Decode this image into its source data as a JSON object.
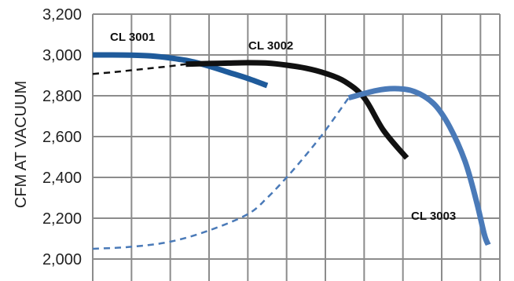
{
  "chart_data": {
    "type": "line",
    "title": "",
    "xlabel": "",
    "ylabel": "CFM AT VACUUM",
    "ylim": [
      2000,
      3200
    ],
    "yticks": [
      2000,
      2200,
      2400,
      2600,
      2800,
      3000,
      3200
    ],
    "ytick_labels": [
      "2,000",
      "2,200",
      "2,400",
      "2,600",
      "2,800",
      "3,000",
      "3,200"
    ],
    "xlim": [
      0,
      10.5
    ],
    "x_gridlines": 10,
    "grid": true,
    "legend": "none",
    "series": [
      {
        "name": "CL 3001",
        "color": "#1f5b9b",
        "style": "solid",
        "points": [
          [
            0,
            3000
          ],
          [
            0.5,
            3000
          ],
          [
            1,
            2999
          ],
          [
            1.5,
            2995
          ],
          [
            2,
            2985
          ],
          [
            2.5,
            2970
          ],
          [
            3,
            2945
          ],
          [
            3.5,
            2915
          ],
          [
            4,
            2885
          ],
          [
            4.5,
            2850
          ]
        ]
      },
      {
        "name": "CL 3002",
        "color": "#111111",
        "style": "solid",
        "points": [
          [
            2.4,
            2955
          ],
          [
            3,
            2958
          ],
          [
            3.5,
            2960
          ],
          [
            4,
            2962
          ],
          [
            4.5,
            2960
          ],
          [
            5,
            2950
          ],
          [
            5.5,
            2935
          ],
          [
            6,
            2910
          ],
          [
            6.5,
            2870
          ],
          [
            7,
            2790
          ],
          [
            7.5,
            2630
          ],
          [
            8.1,
            2495
          ]
        ]
      },
      {
        "name": "",
        "color": "#111111",
        "style": "dashed",
        "points": [
          [
            0,
            2907
          ],
          [
            0.5,
            2915
          ],
          [
            1,
            2925
          ],
          [
            1.5,
            2935
          ],
          [
            2,
            2945
          ],
          [
            2.4,
            2955
          ]
        ]
      },
      {
        "name": "CL 3003",
        "color": "#4a7ab8",
        "style": "solid",
        "points": [
          [
            6.6,
            2790
          ],
          [
            7.3,
            2825
          ],
          [
            7.8,
            2835
          ],
          [
            8.3,
            2820
          ],
          [
            8.8,
            2760
          ],
          [
            9.2,
            2650
          ],
          [
            9.6,
            2480
          ],
          [
            9.9,
            2280
          ],
          [
            10.1,
            2120
          ],
          [
            10.2,
            2070
          ]
        ]
      },
      {
        "name": "",
        "color": "#4a7ab8",
        "style": "dashed",
        "points": [
          [
            0,
            2050
          ],
          [
            1,
            2060
          ],
          [
            2,
            2085
          ],
          [
            3,
            2140
          ],
          [
            4,
            2220
          ],
          [
            4.5,
            2300
          ],
          [
            5,
            2400
          ],
          [
            5.5,
            2510
          ],
          [
            6,
            2630
          ],
          [
            6.6,
            2790
          ]
        ]
      }
    ],
    "annotations": [
      "CL 3001",
      "CL 3002",
      "CL 3003"
    ]
  }
}
